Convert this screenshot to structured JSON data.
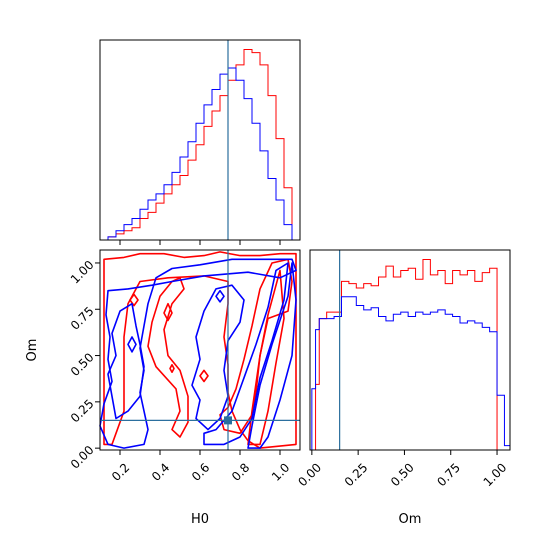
{
  "chart_data": [
    {
      "type": "histogram",
      "panel": "top-left",
      "xlabel": "",
      "ylabel": "",
      "xlim": [
        0.1,
        1.1
      ],
      "xticks": [
        "0.2",
        "0.4",
        "0.6",
        "0.8",
        "1.0"
      ],
      "show_tick_labels": false,
      "truth_x": 0.74,
      "bin_edges": [
        0.1,
        0.14,
        0.18,
        0.22,
        0.26,
        0.3,
        0.34,
        0.38,
        0.42,
        0.46,
        0.5,
        0.54,
        0.58,
        0.62,
        0.66,
        0.7,
        0.74,
        0.78,
        0.82,
        0.86,
        0.9,
        0.94,
        0.98,
        1.02,
        1.06,
        1.1
      ],
      "series": [
        {
          "color": "#ff0000",
          "counts": [
            0,
            1,
            2,
            3,
            4,
            7,
            9,
            12,
            15,
            18,
            21,
            26,
            31,
            37,
            42,
            47,
            52,
            57,
            62,
            61,
            57,
            47,
            33,
            17,
            0
          ]
        },
        {
          "color": "#0000ff",
          "counts": [
            0,
            1,
            3,
            5,
            7,
            10,
            13,
            15,
            18,
            22,
            27,
            32,
            38,
            44,
            49,
            54,
            56,
            52,
            46,
            38,
            29,
            20,
            13,
            5,
            0
          ]
        }
      ]
    },
    {
      "type": "contour",
      "panel": "bottom-left",
      "xlabel": "H0",
      "ylabel": "Om",
      "xlim": [
        0.1,
        1.1
      ],
      "ylim": [
        -0.01,
        1.07
      ],
      "xticks": [
        "0.2",
        "0.4",
        "0.6",
        "0.8",
        "1.0"
      ],
      "yticks": [
        "0.00",
        "0.25",
        "0.50",
        "0.75",
        "1.00"
      ],
      "truth": {
        "x": 0.74,
        "y": 0.15
      },
      "series": [
        {
          "color": "#ff0000",
          "contours": [
            [
              [
                0.12,
                1.02
              ],
              [
                0.22,
                1.03
              ],
              [
                0.3,
                1.05
              ],
              [
                0.42,
                1.05
              ],
              [
                0.52,
                1.03
              ],
              [
                0.62,
                1.04
              ],
              [
                0.7,
                1.06
              ],
              [
                0.8,
                1.04
              ],
              [
                0.9,
                1.04
              ],
              [
                1.0,
                1.05
              ],
              [
                1.08,
                1.05
              ],
              [
                1.08,
                0.02
              ],
              [
                0.9,
                0.0
              ],
              [
                0.84,
                0.04
              ],
              [
                0.8,
                0.1
              ],
              [
                0.76,
                0.2
              ],
              [
                0.74,
                0.3
              ],
              [
                0.74,
                0.45
              ],
              [
                0.72,
                0.6
              ],
              [
                0.74,
                0.78
              ],
              [
                0.74,
                0.9
              ],
              [
                0.62,
                0.93
              ],
              [
                0.44,
                0.92
              ],
              [
                0.3,
                0.9
              ],
              [
                0.24,
                0.78
              ],
              [
                0.22,
                0.6
              ],
              [
                0.22,
                0.4
              ],
              [
                0.22,
                0.2
              ],
              [
                0.18,
                0.08
              ],
              [
                0.16,
                0.02
              ],
              [
                0.12,
                0.02
              ]
            ],
            [
              [
                0.46,
                0.1
              ],
              [
                0.5,
                0.2
              ],
              [
                0.48,
                0.32
              ],
              [
                0.38,
                0.44
              ],
              [
                0.34,
                0.55
              ],
              [
                0.36,
                0.68
              ],
              [
                0.4,
                0.82
              ],
              [
                0.46,
                0.9
              ],
              [
                0.5,
                0.92
              ],
              [
                0.52,
                0.86
              ],
              [
                0.46,
                0.78
              ],
              [
                0.42,
                0.64
              ],
              [
                0.44,
                0.5
              ],
              [
                0.5,
                0.42
              ],
              [
                0.54,
                0.28
              ],
              [
                0.54,
                0.14
              ],
              [
                0.5,
                0.06
              ]
            ],
            [
              [
                0.7,
                0.18
              ],
              [
                0.72,
                0.1
              ],
              [
                0.8,
                0.08
              ],
              [
                0.86,
                0.18
              ],
              [
                0.88,
                0.3
              ],
              [
                0.9,
                0.5
              ],
              [
                0.94,
                0.7
              ],
              [
                1.04,
                0.74
              ],
              [
                1.06,
                0.9
              ],
              [
                1.04,
                1.02
              ],
              [
                0.96,
                1.0
              ],
              [
                0.9,
                0.86
              ],
              [
                0.86,
                0.66
              ],
              [
                0.82,
                0.48
              ],
              [
                0.78,
                0.32
              ],
              [
                0.74,
                0.22
              ]
            ],
            [
              [
                0.84,
                0.02
              ],
              [
                0.86,
                0.2
              ],
              [
                0.9,
                0.5
              ],
              [
                0.94,
                0.72
              ],
              [
                1.0,
                0.96
              ],
              [
                1.02,
                0.7
              ],
              [
                0.98,
                0.46
              ],
              [
                0.94,
                0.2
              ],
              [
                0.9,
                0.02
              ]
            ],
            [
              [
                0.25,
                0.8
              ],
              [
                0.27,
                0.83
              ],
              [
                0.29,
                0.8
              ],
              [
                0.27,
                0.77
              ]
            ],
            [
              [
                0.42,
                0.73
              ],
              [
                0.44,
                0.78
              ],
              [
                0.46,
                0.73
              ],
              [
                0.44,
                0.69
              ]
            ],
            [
              [
                0.45,
                0.43
              ],
              [
                0.46,
                0.45
              ],
              [
                0.47,
                0.43
              ],
              [
                0.46,
                0.41
              ]
            ],
            [
              [
                0.6,
                0.39
              ],
              [
                0.62,
                0.42
              ],
              [
                0.64,
                0.39
              ],
              [
                0.62,
                0.36
              ]
            ]
          ]
        },
        {
          "color": "#0000ff",
          "contours": [
            [
              [
                0.14,
                0.02
              ],
              [
                0.22,
                0.0
              ],
              [
                0.32,
                0.02
              ],
              [
                0.34,
                0.1
              ],
              [
                0.32,
                0.2
              ],
              [
                0.3,
                0.3
              ],
              [
                0.32,
                0.42
              ],
              [
                0.3,
                0.54
              ],
              [
                0.32,
                0.66
              ],
              [
                0.34,
                0.78
              ],
              [
                0.38,
                0.92
              ],
              [
                0.46,
                0.97
              ],
              [
                0.6,
                0.99
              ],
              [
                0.76,
                1.02
              ],
              [
                0.9,
                1.02
              ],
              [
                1.06,
                1.02
              ],
              [
                1.08,
                0.96
              ],
              [
                1.0,
                0.92
              ],
              [
                0.84,
                0.95
              ],
              [
                0.62,
                0.93
              ],
              [
                0.46,
                0.9
              ],
              [
                0.36,
                0.88
              ],
              [
                0.24,
                0.86
              ],
              [
                0.14,
                0.85
              ],
              [
                0.13,
                0.72
              ],
              [
                0.15,
                0.6
              ],
              [
                0.14,
                0.48
              ],
              [
                0.16,
                0.36
              ],
              [
                0.12,
                0.24
              ],
              [
                0.1,
                0.12
              ]
            ],
            [
              [
                0.32,
                0.44
              ],
              [
                0.3,
                0.28
              ],
              [
                0.24,
                0.2
              ],
              [
                0.18,
                0.16
              ],
              [
                0.16,
                0.28
              ],
              [
                0.14,
                0.4
              ],
              [
                0.18,
                0.5
              ],
              [
                0.16,
                0.62
              ],
              [
                0.2,
                0.74
              ],
              [
                0.26,
                0.78
              ],
              [
                0.28,
                0.66
              ],
              [
                0.3,
                0.56
              ]
            ],
            [
              [
                0.62,
                0.02
              ],
              [
                0.72,
                0.02
              ],
              [
                0.8,
                0.06
              ],
              [
                0.86,
                0.16
              ],
              [
                0.9,
                0.38
              ],
              [
                0.96,
                0.58
              ],
              [
                1.02,
                0.8
              ],
              [
                1.04,
                1.0
              ],
              [
                0.98,
                0.96
              ],
              [
                0.94,
                0.76
              ],
              [
                0.88,
                0.56
              ],
              [
                0.82,
                0.38
              ],
              [
                0.76,
                0.2
              ],
              [
                0.68,
                0.1
              ],
              [
                0.62,
                0.08
              ]
            ],
            [
              [
                0.58,
                0.16
              ],
              [
                0.6,
                0.26
              ],
              [
                0.56,
                0.34
              ],
              [
                0.6,
                0.48
              ],
              [
                0.58,
                0.6
              ],
              [
                0.62,
                0.74
              ],
              [
                0.68,
                0.86
              ],
              [
                0.76,
                0.88
              ],
              [
                0.82,
                0.8
              ],
              [
                0.8,
                0.68
              ],
              [
                0.74,
                0.58
              ],
              [
                0.72,
                0.42
              ],
              [
                0.74,
                0.28
              ],
              [
                0.7,
                0.16
              ],
              [
                0.64,
                0.1
              ]
            ],
            [
              [
                0.84,
                0.0
              ],
              [
                0.86,
                0.12
              ],
              [
                0.9,
                0.34
              ],
              [
                0.96,
                0.56
              ],
              [
                1.04,
                0.82
              ],
              [
                1.06,
                1.0
              ],
              [
                1.08,
                0.8
              ],
              [
                1.06,
                0.5
              ],
              [
                1.0,
                0.26
              ],
              [
                0.94,
                0.06
              ],
              [
                0.9,
                0.0
              ]
            ],
            [
              [
                0.24,
                0.56
              ],
              [
                0.26,
                0.6
              ],
              [
                0.28,
                0.56
              ],
              [
                0.26,
                0.52
              ]
            ],
            [
              [
                0.68,
                0.82
              ],
              [
                0.7,
                0.85
              ],
              [
                0.72,
                0.82
              ],
              [
                0.7,
                0.79
              ]
            ]
          ]
        }
      ]
    },
    {
      "type": "histogram",
      "panel": "bottom-right",
      "xlabel": "Om",
      "ylabel": "",
      "xlim": [
        -0.01,
        1.07
      ],
      "xticks": [
        "0.00",
        "0.25",
        "0.50",
        "0.75",
        "1.00"
      ],
      "truth_x": 0.15,
      "bin_edges": [
        0.0,
        0.02,
        0.04,
        0.08,
        0.12,
        0.16,
        0.2,
        0.24,
        0.28,
        0.32,
        0.36,
        0.4,
        0.44,
        0.48,
        0.52,
        0.56,
        0.6,
        0.64,
        0.68,
        0.72,
        0.76,
        0.8,
        0.84,
        0.88,
        0.92,
        0.96,
        1.0,
        1.04,
        1.07
      ],
      "series": [
        {
          "color": "#ff0000",
          "counts": [
            0,
            30,
            60,
            63,
            63,
            77,
            76,
            74,
            76,
            75,
            79,
            84,
            79,
            82,
            83,
            78,
            87,
            80,
            82,
            76,
            82,
            80,
            82,
            77,
            81,
            83,
            0,
            0
          ]
        },
        {
          "color": "#0000ff",
          "counts": [
            28,
            55,
            60,
            60,
            61,
            70,
            70,
            66,
            64,
            65,
            61,
            59,
            62,
            63,
            61,
            63,
            62,
            63,
            64,
            62,
            61,
            58,
            59,
            58,
            56,
            54,
            25,
            2
          ]
        }
      ]
    }
  ]
}
